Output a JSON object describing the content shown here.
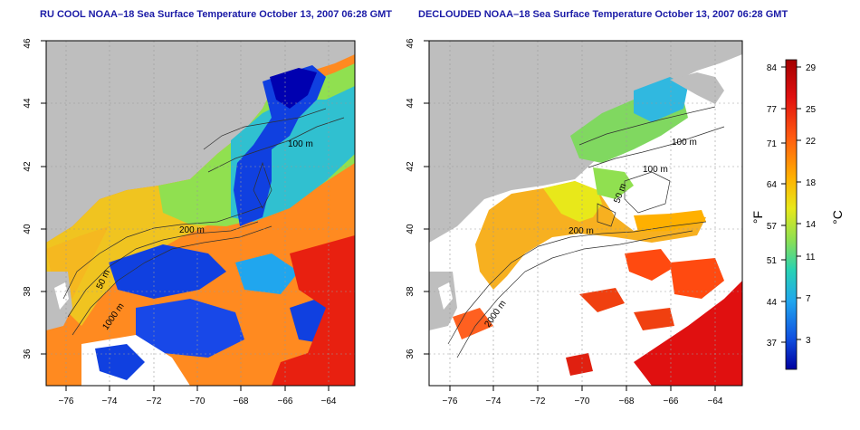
{
  "left_panel": {
    "title": "RU COOL NOAA–18 Sea Surface Temperature October 13, 2007 06:28 GMT"
  },
  "right_panel": {
    "title": "DECLOUDED NOAA–18 Sea Surface Temperature October 13, 2007 06:28 GMT"
  },
  "axes": {
    "lat_ticks": [
      "36",
      "38",
      "40",
      "42",
      "44",
      "46"
    ],
    "lon_ticks": [
      "−76",
      "−74",
      "−72",
      "−70",
      "−68",
      "−66",
      "−64"
    ],
    "lon_range": [
      -77,
      -63
    ],
    "lat_range": [
      35,
      46
    ],
    "grid": true
  },
  "contour_labels": {
    "left": [
      "100 m",
      "200 m",
      "50 m",
      "1000 m"
    ],
    "right": [
      "100 m",
      "100 m",
      "50 m",
      "200 m",
      "2000 m"
    ]
  },
  "colorbar": {
    "fahrenheit_ticks": [
      "84",
      "77",
      "71",
      "64",
      "57",
      "51",
      "44",
      "37"
    ],
    "celsius_ticks": [
      "29",
      "25",
      "22",
      "18",
      "14",
      "11",
      "7",
      "3"
    ],
    "fahrenheit_unit": "°F",
    "celsius_unit": "°C",
    "colors": [
      "#a30000",
      "#e01010",
      "#ff5a10",
      "#ffb000",
      "#e8e81a",
      "#8fe050",
      "#28d2b4",
      "#20a6ee",
      "#1050e0",
      "#0000a0"
    ]
  },
  "colors": {
    "land": "#bebebe",
    "no_data": "#ffffff",
    "title": "#1a1aa6"
  }
}
